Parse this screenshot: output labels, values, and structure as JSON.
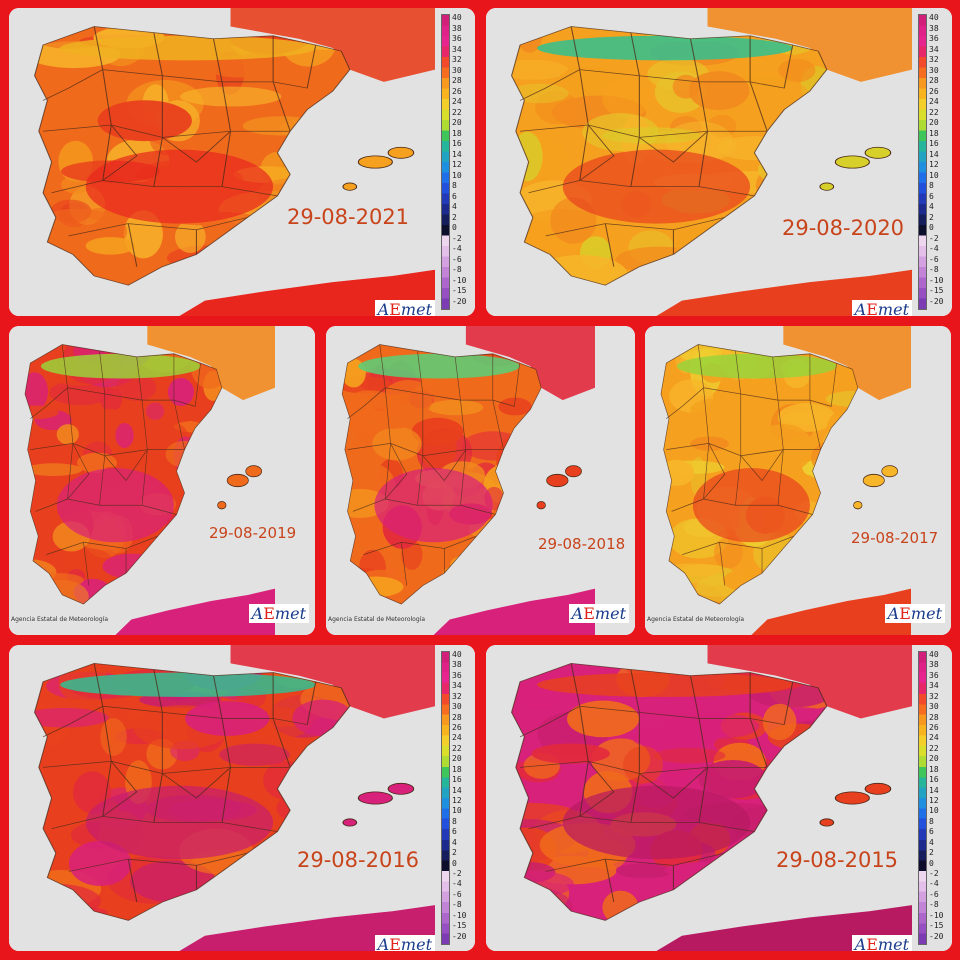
{
  "panels": [
    {
      "date": "29-08-2021",
      "palette": [
        "#f06a1c",
        "#f5a01e",
        "#f28a1e",
        "#e8401e",
        "#f7b52a"
      ],
      "north": "#f0b020",
      "hot": "#e8261e"
    },
    {
      "date": "29-08-2020",
      "palette": [
        "#f5a01e",
        "#d8d02a",
        "#f7b52a",
        "#f28a1e",
        "#e8c22a"
      ],
      "north": "#30c090",
      "hot": "#e8401e"
    },
    {
      "date": "29-08-2019",
      "palette": [
        "#e8401e",
        "#f06a1c",
        "#e22a3c",
        "#f28a1e",
        "#d8217a"
      ],
      "north": "#9ad23a",
      "hot": "#d8217a"
    },
    {
      "date": "29-08-2018",
      "palette": [
        "#f06a1c",
        "#e8401e",
        "#f28a1e",
        "#e22a3c",
        "#f5a01e"
      ],
      "north": "#58d07a",
      "hot": "#d8217a"
    },
    {
      "date": "29-08-2017",
      "palette": [
        "#f5a01e",
        "#f7b52a",
        "#e8c22a",
        "#f28a1e",
        "#eed030"
      ],
      "north": "#9ad23a",
      "hot": "#e8401e"
    },
    {
      "date": "29-08-2016",
      "palette": [
        "#e8401e",
        "#d8217a",
        "#f06a1c",
        "#e22a3c",
        "#c81e6e"
      ],
      "north": "#30c090",
      "hot": "#c81e6e"
    },
    {
      "date": "29-08-2015",
      "palette": [
        "#d8217a",
        "#e8401e",
        "#c81e6e",
        "#e22a3c",
        "#f06a1c"
      ],
      "north": "#e8401e",
      "hot": "#b81a62"
    }
  ],
  "legend": {
    "labels": [
      "40",
      "38",
      "36",
      "34",
      "32",
      "30",
      "28",
      "26",
      "24",
      "22",
      "20",
      "18",
      "16",
      "14",
      "12",
      "10",
      "8",
      "6",
      "4",
      "2",
      "0",
      "-2",
      "-4",
      "-6",
      "-8",
      "-10",
      "-15",
      "-20"
    ],
    "colors": [
      "#d21f7a",
      "#e02288",
      "#e8258f",
      "#e8266a",
      "#f24a2a",
      "#f76d1f",
      "#f7981f",
      "#f8b41f",
      "#f4cf2a",
      "#d9de2a",
      "#aedc33",
      "#3fc65a",
      "#24b59a",
      "#23a3c2",
      "#1f8fe0",
      "#1f6fe8",
      "#234fdd",
      "#2239b8",
      "#1b2a8c",
      "#151d5c",
      "#0d0d2c",
      "#efd6ef",
      "#e3bfe9",
      "#d3a0e0",
      "#c184d6",
      "#ad67cc",
      "#9650c2",
      "#7c3cb4"
    ]
  },
  "logo": {
    "prefix": "A",
    "accent": "E",
    "suffix": "met"
  },
  "credit": "Agencia Estatal de Meteorología"
}
